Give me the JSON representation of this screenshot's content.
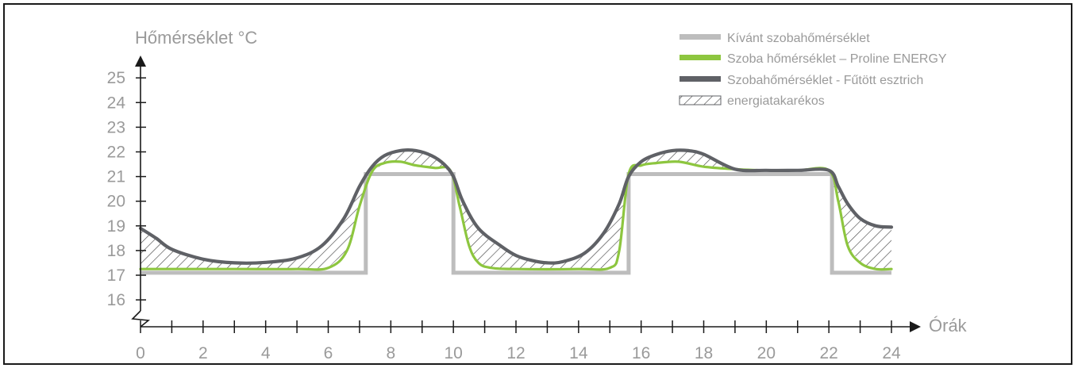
{
  "chart_data": {
    "type": "line",
    "title": "",
    "ylabel": "Hőmérséklet °C",
    "xlabel": "Órák",
    "xlim": [
      0,
      24
    ],
    "ylim": [
      15.3,
      26
    ],
    "x_ticks": [
      "0",
      "2",
      "4",
      "6",
      "8",
      "10",
      "12",
      "14",
      "16",
      "18",
      "20",
      "22",
      "24"
    ],
    "y_ticks": [
      "16",
      "17",
      "18",
      "19",
      "20",
      "21",
      "22",
      "23",
      "24",
      "25"
    ],
    "axis_break": true,
    "legend_position": "top-right",
    "legend": [
      {
        "label": "Kívánt szobahőmérséklet",
        "color": "#bdbdbd",
        "kind": "line"
      },
      {
        "label": "Szoba hőmérséklet – Proline ENERGY",
        "color": "#8dc63f",
        "kind": "line"
      },
      {
        "label": "Szobahőmérséklet - Fűtött esztrich",
        "color": "#5f6166",
        "kind": "line"
      },
      {
        "label": "energiatakarékos",
        "color": "#5f6166",
        "kind": "hatch"
      }
    ],
    "series": [
      {
        "name": "Kívánt szobahőmérséklet",
        "color": "#bdbdbd",
        "x": [
          0,
          7.2,
          7.2,
          10,
          10,
          15.6,
          15.6,
          22.1,
          22.1,
          24
        ],
        "y": [
          17.1,
          17.1,
          21.1,
          21.1,
          17.1,
          17.1,
          21.1,
          21.1,
          17.1,
          17.1
        ]
      },
      {
        "name": "Szoba hőmérséklet – Proline ENERGY",
        "color": "#8dc63f",
        "x": [
          0,
          1,
          3,
          5,
          6,
          6.6,
          7,
          7.4,
          7.8,
          8.3,
          8.8,
          9.4,
          9.9,
          10.2,
          10.5,
          10.8,
          11.2,
          12,
          14,
          15,
          15.3,
          15.6,
          16,
          16.5,
          17.2,
          18,
          19,
          20,
          21,
          22,
          22.3,
          22.6,
          23,
          23.5,
          24
        ],
        "y": [
          17.25,
          17.25,
          17.25,
          17.25,
          17.3,
          18.0,
          19.8,
          21.2,
          21.55,
          21.6,
          21.45,
          21.35,
          21.25,
          19.8,
          18.2,
          17.5,
          17.3,
          17.25,
          17.25,
          17.3,
          18.0,
          21.1,
          21.45,
          21.55,
          21.6,
          21.4,
          21.3,
          21.25,
          21.25,
          21.25,
          20.0,
          18.2,
          17.5,
          17.25,
          17.25
        ]
      },
      {
        "name": "Szobahőmérséklet - Fűtött esztrich",
        "color": "#5f6166",
        "x": [
          0,
          0.5,
          1,
          2,
          3,
          4,
          5,
          5.8,
          6.5,
          7,
          7.4,
          7.8,
          8.3,
          8.8,
          9.3,
          9.7,
          10,
          10.3,
          10.8,
          11.5,
          12,
          12.5,
          13,
          13.5,
          14.2,
          14.8,
          15.3,
          15.6,
          16,
          16.5,
          17,
          17.5,
          18,
          19,
          20,
          21,
          22,
          22.3,
          22.6,
          23,
          23.5,
          24
        ],
        "y": [
          18.9,
          18.5,
          18.05,
          17.65,
          17.5,
          17.52,
          17.7,
          18.2,
          19.3,
          20.6,
          21.4,
          21.85,
          22.05,
          22.05,
          21.85,
          21.5,
          21.0,
          20.0,
          18.9,
          18.2,
          17.8,
          17.6,
          17.5,
          17.55,
          17.9,
          18.7,
          19.9,
          21.0,
          21.6,
          21.9,
          22.05,
          22.05,
          21.9,
          21.3,
          21.25,
          21.25,
          21.25,
          20.6,
          19.9,
          19.3,
          19.0,
          18.95
        ]
      }
    ]
  }
}
